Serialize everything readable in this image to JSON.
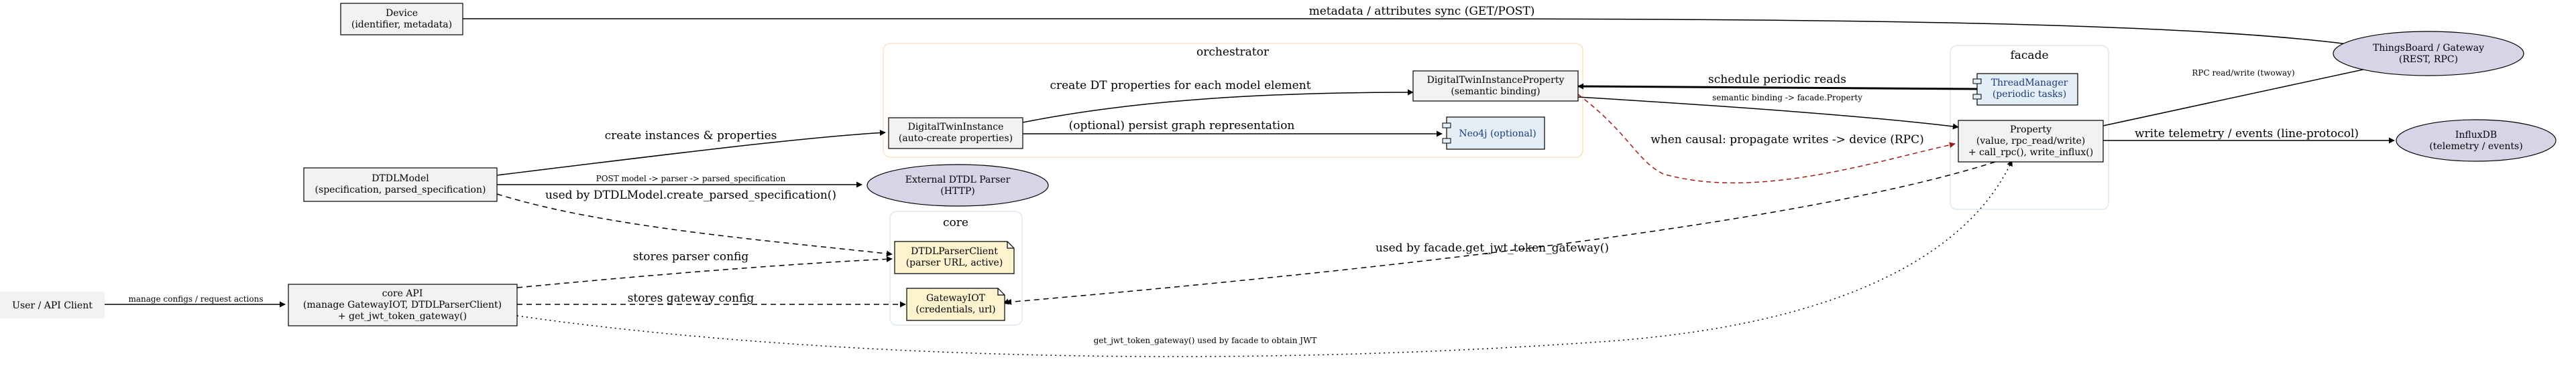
{
  "clusters": {
    "orchestrator": "orchestrator",
    "facade": "facade",
    "core": "core"
  },
  "nodes": {
    "device": [
      "Device",
      "(identifier, metadata)"
    ],
    "thingsboard": [
      "ThingsBoard / Gateway",
      "(REST, RPC)"
    ],
    "dt_instance_property": [
      "DigitalTwinInstanceProperty",
      "(semantic binding)"
    ],
    "thread_manager": [
      "ThreadManager",
      "(periodic tasks)"
    ],
    "dt_instance": [
      "DigitalTwinInstance",
      "(auto-create properties)"
    ],
    "neo4j": [
      "Neo4j (optional)"
    ],
    "property": [
      "Property",
      "(value, rpc_read/write)",
      "+ call_rpc(), write_influx()"
    ],
    "influxdb": [
      "InfluxDB",
      "(telemetry / events)"
    ],
    "dtdl_model": [
      "DTDLModel",
      "(specification, parsed_specification)"
    ],
    "external_parser": [
      "External DTDL Parser",
      "(HTTP)"
    ],
    "dtdl_parser_client": [
      "DTDLParserClient",
      "(parser URL, active)"
    ],
    "user": [
      "User / API Client"
    ],
    "core_api": [
      "core API",
      "(manage GatewayIOT, DTDLParserClient)",
      "+ get_jwt_token_gateway()"
    ],
    "gateway_iot": [
      "GatewayIOT",
      "(credentials, url)"
    ]
  },
  "edges": {
    "device_tb": "metadata / attributes sync (GET/POST)",
    "prop_tb": "RPC read/write (twoway)",
    "tm_dtip": "schedule periodic reads",
    "dtip_prop_semantic": "semantic binding -> facade.Property",
    "dti_dtip": "create DT properties for each model element",
    "dti_neo4j": "(optional) persist graph representation",
    "dtip_prop_causal": "when causal: propagate writes -> device (RPC)",
    "prop_influx": "write telemetry / events (line-protocol)",
    "model_dti": "create instances & properties",
    "model_parser": "POST model -> parser -> parsed_specification",
    "model_client": "used by DTDLModel.create_parsed_specification()",
    "prop_gateway": "used by facade.get_jwt_token_gateway()",
    "core_client": "stores parser config",
    "user_core": "manage configs / request actions",
    "core_gateway": "stores gateway config",
    "core_prop": "get_jwt_token_gateway() used by facade to obtain JWT"
  },
  "colors": {
    "box_fill": "#f2f2f2",
    "ellipse_fill": "#d9d3e8",
    "component_fill": "#e4eef7",
    "note_fill": "#fdf3cf",
    "cluster_border": "#fbe3c8",
    "cluster_border_blue": "#dde8f2",
    "edge": "#000000",
    "causal_edge": "#9c1c1c"
  },
  "icons": {
    "component": "component-icon",
    "note": "note-fold-icon"
  }
}
